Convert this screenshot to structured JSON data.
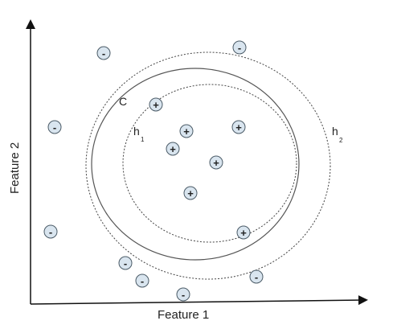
{
  "axes": {
    "x_label": "Feature 1",
    "y_label": "Feature 2",
    "color": "#111111"
  },
  "curves": [
    {
      "id": "C",
      "label": "C",
      "subscript": "",
      "style": "solid",
      "color": "#555555"
    },
    {
      "id": "h1",
      "label": "h",
      "subscript": "1",
      "style": "dotted",
      "color": "#444444"
    },
    {
      "id": "h2",
      "label": "h",
      "subscript": "2",
      "style": "dotted",
      "color": "#444444"
    }
  ],
  "samples": [
    {
      "class": "negative",
      "symbol": "-"
    },
    {
      "class": "negative",
      "symbol": "-"
    },
    {
      "class": "negative",
      "symbol": "-"
    },
    {
      "class": "negative",
      "symbol": "-"
    },
    {
      "class": "negative",
      "symbol": "-"
    },
    {
      "class": "negative",
      "symbol": "-"
    },
    {
      "class": "negative",
      "symbol": "-"
    },
    {
      "class": "negative",
      "symbol": "-"
    },
    {
      "class": "positive",
      "symbol": "+"
    },
    {
      "class": "positive",
      "symbol": "+"
    },
    {
      "class": "positive",
      "symbol": "+"
    },
    {
      "class": "positive",
      "symbol": "+"
    },
    {
      "class": "positive",
      "symbol": "+"
    },
    {
      "class": "positive",
      "symbol": "+"
    },
    {
      "class": "positive",
      "symbol": "+"
    }
  ],
  "colors": {
    "marker_fill": "#d9e5ef",
    "marker_stroke": "#4a5a66"
  }
}
